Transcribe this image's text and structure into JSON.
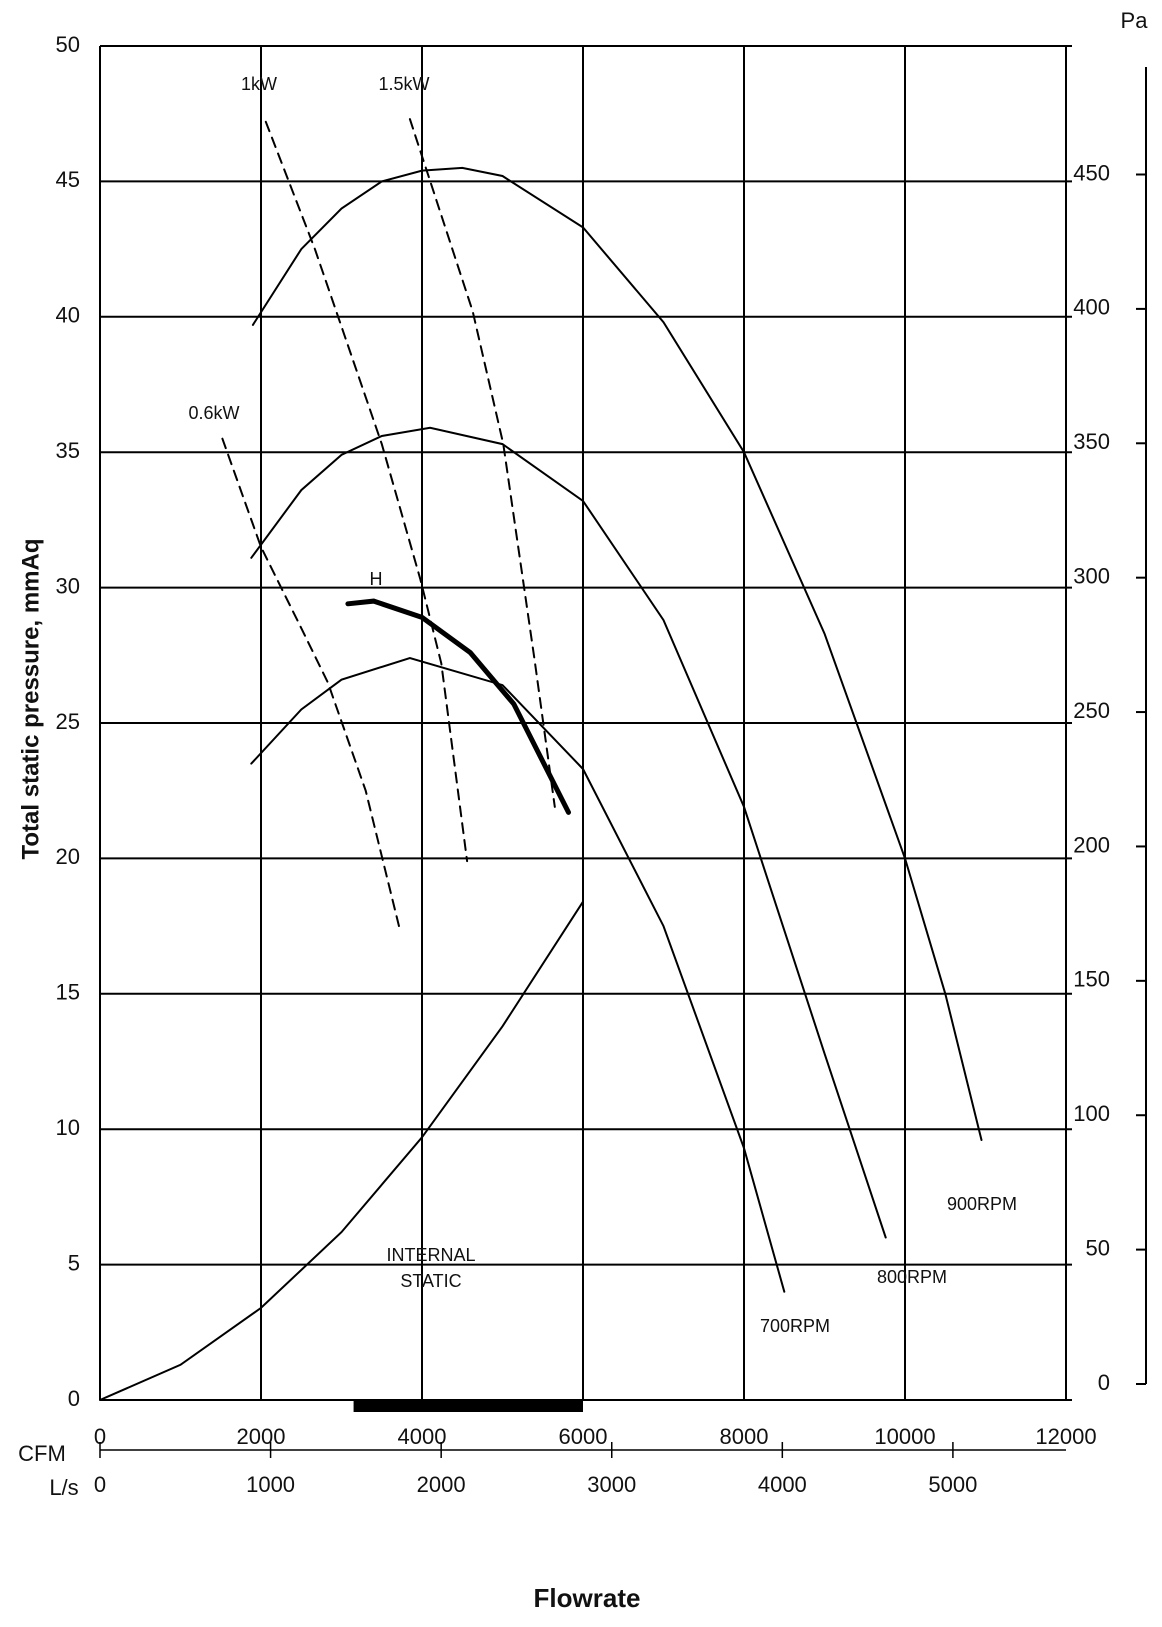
{
  "chart_data": {
    "type": "line",
    "ylabel": "Total static pressure, mmAq",
    "xlabel": "Flowrate",
    "xunit": "CFM",
    "x2unit": "L/s",
    "y2unit": "Pa",
    "xlim": [
      0,
      12000
    ],
    "xticks": [
      0,
      2000,
      4000,
      6000,
      8000,
      10000,
      12000
    ],
    "x2lim": [
      0,
      5663
    ],
    "x2ticks": [
      0,
      1000,
      2000,
      3000,
      4000,
      5000
    ],
    "ylim": [
      0,
      50
    ],
    "yticks": [
      0,
      5,
      10,
      15,
      20,
      25,
      30,
      35,
      40,
      45,
      50
    ],
    "y2lim": [
      0,
      490
    ],
    "y2ticks": [
      0,
      50,
      100,
      150,
      200,
      250,
      300,
      350,
      400,
      450
    ],
    "grid": true,
    "highlight_range": [
      3150,
      6000
    ],
    "series": [
      {
        "name": "900RPM",
        "color": "#000000",
        "line_style": "solid",
        "x": [
          1900,
          2500,
          3000,
          3500,
          4000,
          4500,
          5000,
          6000,
          7000,
          8000,
          9000,
          10000,
          10500,
          10950
        ],
        "values": [
          39.7,
          42.5,
          44.0,
          45.0,
          45.4,
          45.5,
          45.2,
          43.3,
          39.8,
          35.0,
          28.3,
          20.0,
          15.0,
          9.6
        ]
      },
      {
        "name": "800RPM",
        "color": "#000000",
        "line_style": "solid",
        "x": [
          1880,
          2500,
          3000,
          3500,
          4100,
          5000,
          6000,
          7000,
          8000,
          9000,
          9760
        ],
        "values": [
          31.1,
          33.6,
          34.9,
          35.6,
          35.9,
          35.3,
          33.2,
          28.8,
          21.9,
          12.8,
          6.0
        ]
      },
      {
        "name": "700RPM",
        "color": "#000000",
        "line_style": "solid",
        "x": [
          1880,
          2500,
          3000,
          3850,
          5000,
          6000,
          7000,
          8000,
          8500
        ],
        "values": [
          23.5,
          25.5,
          26.6,
          27.4,
          26.4,
          23.3,
          17.5,
          9.3,
          4.0
        ]
      },
      {
        "name": "H",
        "color": "#000000",
        "line_style": "bold",
        "x": [
          3080,
          3400,
          4000,
          4600,
          5140,
          5820
        ],
        "values": [
          29.4,
          29.5,
          28.9,
          27.6,
          25.7,
          21.7
        ]
      },
      {
        "name": "INTERNAL STATIC",
        "color": "#000000",
        "line_style": "solid",
        "x": [
          0,
          1000,
          2000,
          3000,
          4000,
          5000,
          6000
        ],
        "values": [
          0,
          1.3,
          3.4,
          6.2,
          9.7,
          13.8,
          18.4
        ]
      },
      {
        "name": "0.6kW",
        "color": "#000000",
        "line_style": "dashed",
        "x": [
          1520,
          2000,
          2500,
          2830,
          3300,
          3730
        ],
        "values": [
          35.5,
          31.5,
          28.5,
          26.5,
          22.5,
          17.3
        ]
      },
      {
        "name": "1kW",
        "color": "#000000",
        "line_style": "dashed",
        "x": [
          2060,
          2670,
          3500,
          3980,
          4240,
          4560
        ],
        "values": [
          47.2,
          42.5,
          35.3,
          30.3,
          27.2,
          19.9
        ]
      },
      {
        "name": "1.5kW",
        "color": "#000000",
        "line_style": "dashed",
        "x": [
          3850,
          4630,
          5010,
          5400,
          5650
        ],
        "values": [
          47.3,
          40.2,
          35.3,
          27.3,
          21.9
        ]
      }
    ]
  }
}
